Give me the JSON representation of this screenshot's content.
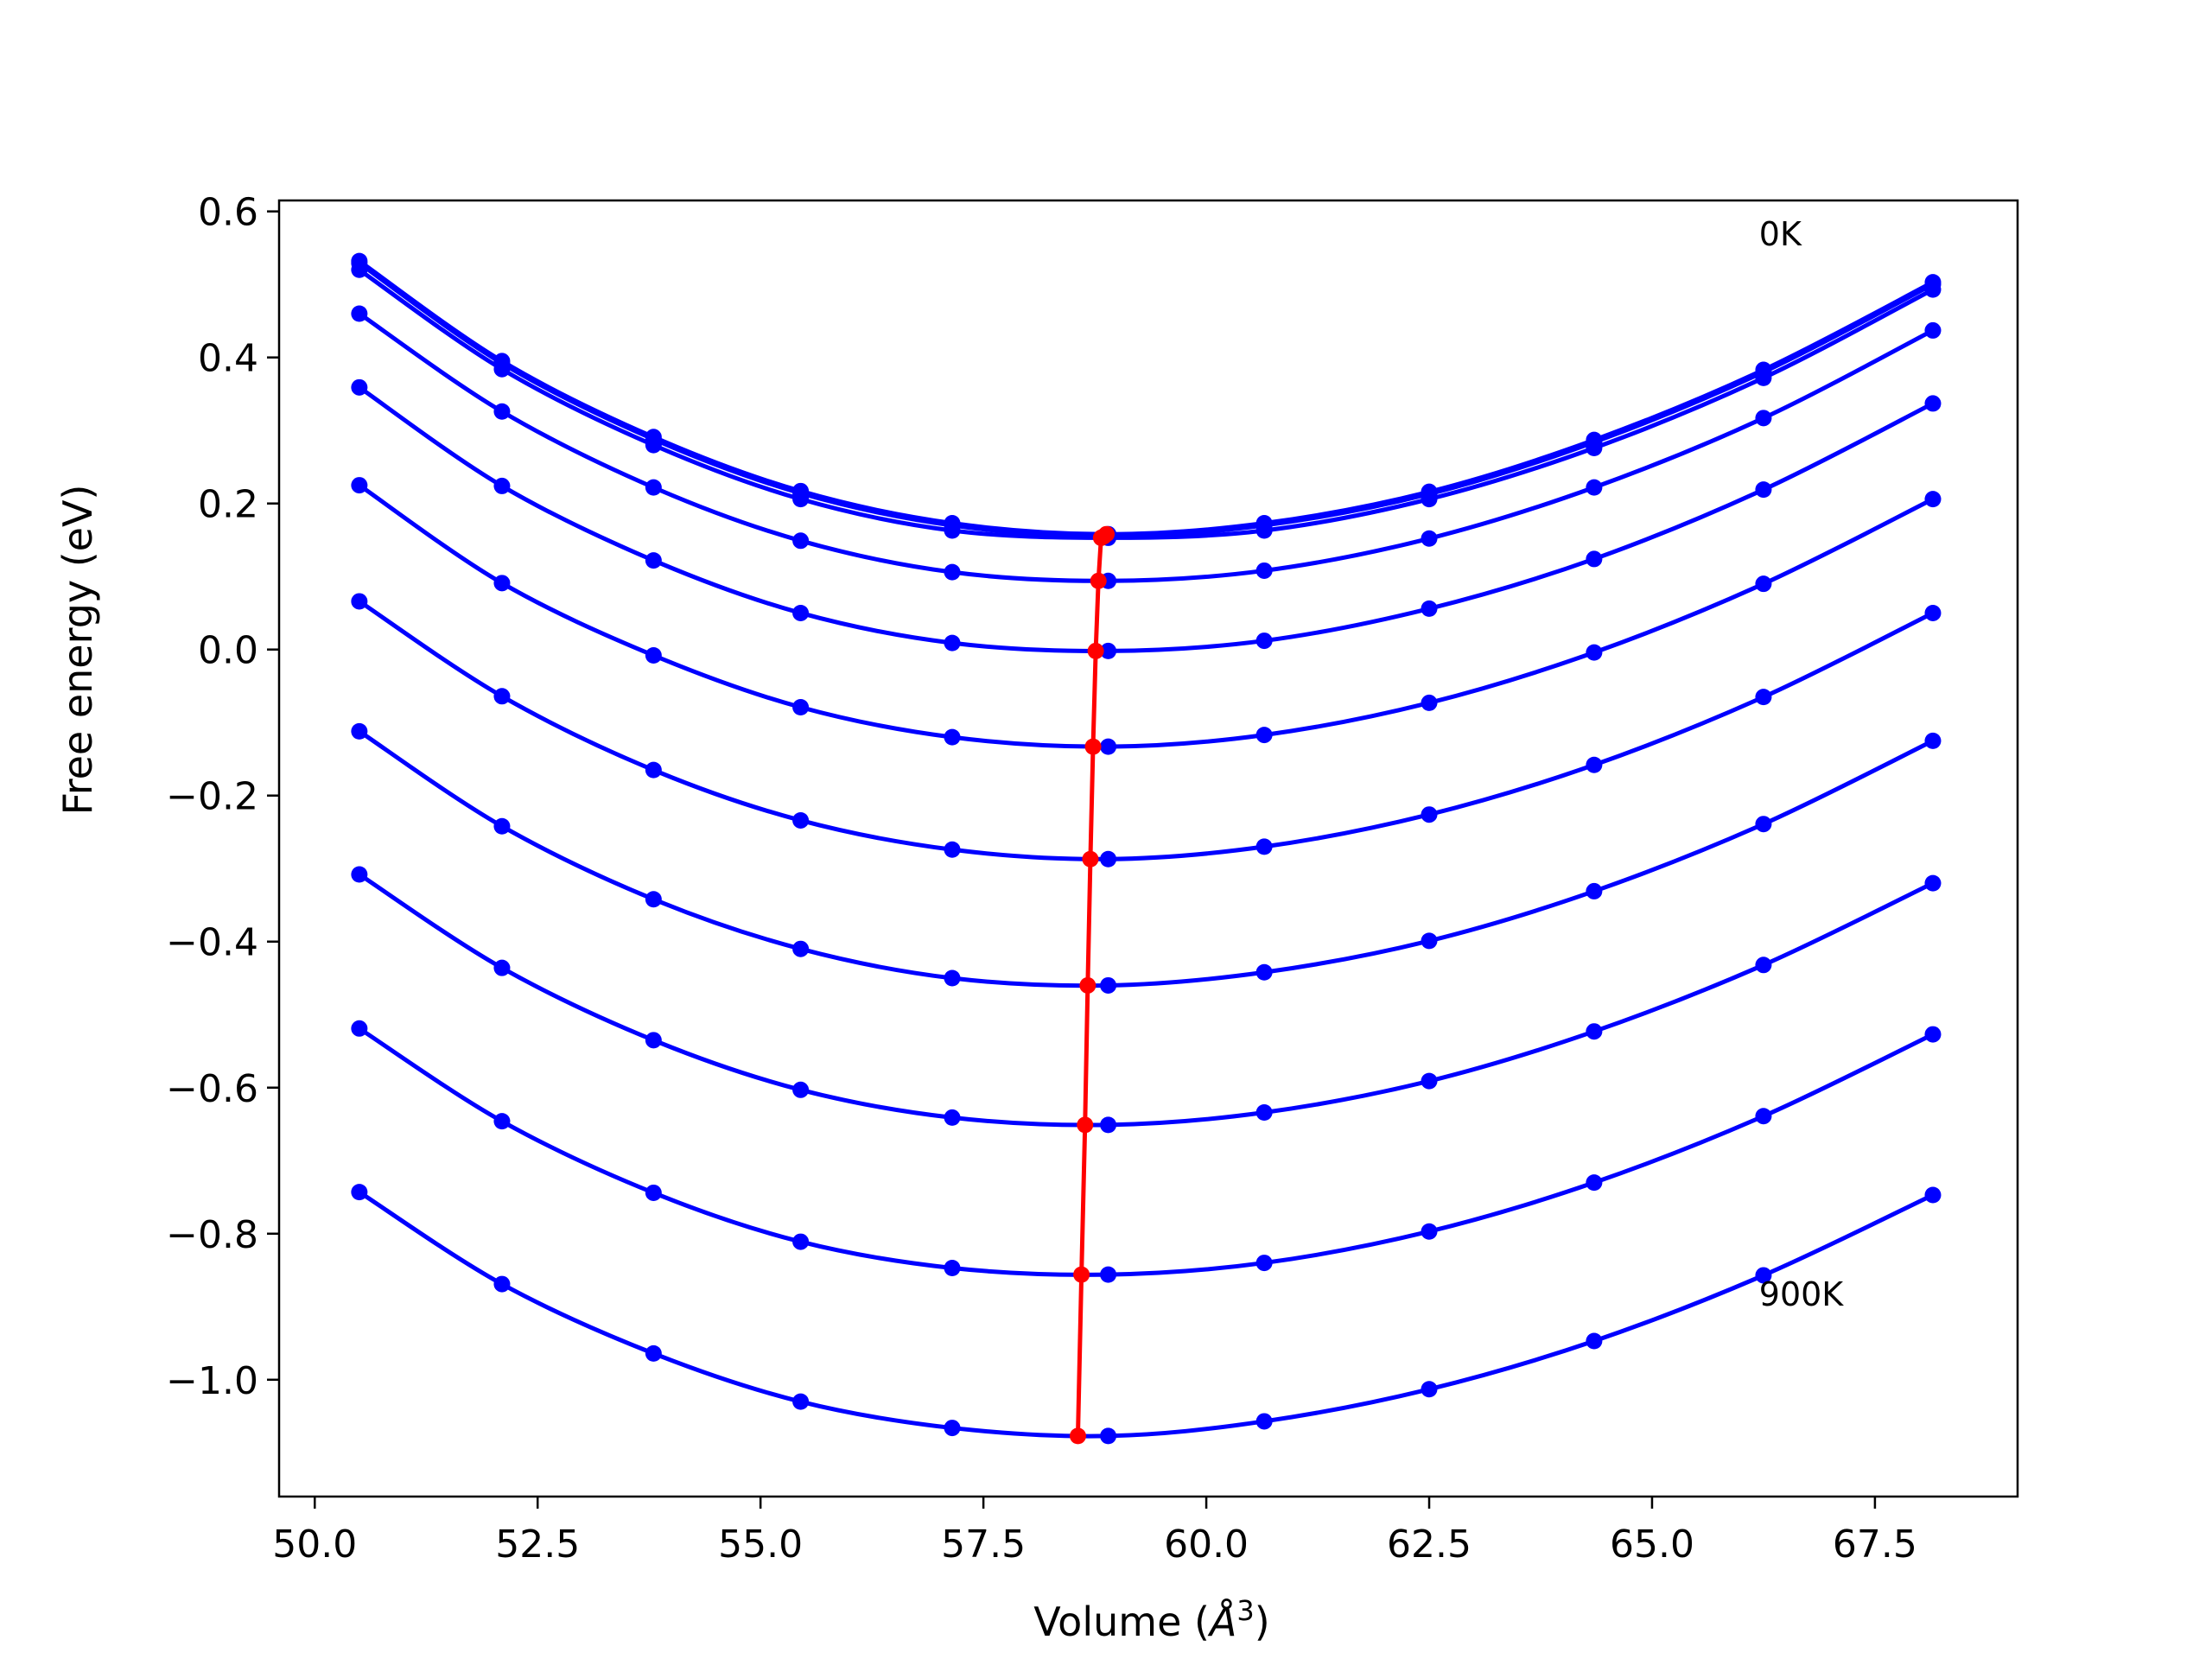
{
  "chart_data": {
    "type": "line",
    "xlabel": "Volume (Å³)",
    "xlabel_main": "Volume (",
    "xlabel_unit": "Å",
    "xlabel_exp": "3",
    "xlabel_close": ")",
    "ylabel": "Free energy (eV)",
    "xlim": [
      49.6,
      69.1
    ],
    "ylim": [
      -1.16,
      0.615
    ],
    "xticks": [
      50.0,
      52.5,
      55.0,
      57.5,
      60.0,
      62.5,
      65.0,
      67.5
    ],
    "xtick_labels": [
      "50.0",
      "52.5",
      "55.0",
      "57.5",
      "60.0",
      "62.5",
      "65.0",
      "67.5"
    ],
    "yticks": [
      0.6,
      0.4,
      0.2,
      0.0,
      -0.2,
      -0.4,
      -0.6,
      -0.8,
      -1.0
    ],
    "ytick_labels": [
      "0.6",
      "0.4",
      "0.2",
      "0.0",
      "−0.2",
      "−0.4",
      "−0.6",
      "−0.8",
      "−1.0"
    ],
    "grid": false,
    "legend": "none",
    "colors": {
      "curves": "#0000ff",
      "minima": "#ff0000"
    },
    "annotations": [
      {
        "text": "0K",
        "x": 66.2,
        "y": 0.57
      },
      {
        "text": "900K",
        "x": 66.2,
        "y": -0.882
      }
    ],
    "x": [
      50.5,
      52.1,
      53.8,
      55.45,
      57.15,
      58.9,
      60.65,
      62.5,
      64.35,
      66.25,
      68.15
    ],
    "series": [
      {
        "values": [
          0.532,
          0.395,
          0.291,
          0.217,
          0.173,
          0.158,
          0.173,
          0.216,
          0.287,
          0.383,
          0.503
        ]
      },
      {
        "values": [
          0.529,
          0.392,
          0.288,
          0.214,
          0.17,
          0.155,
          0.17,
          0.213,
          0.284,
          0.38,
          0.5
        ]
      },
      {
        "values": [
          0.52,
          0.384,
          0.28,
          0.206,
          0.163,
          0.153,
          0.163,
          0.206,
          0.276,
          0.372,
          0.493
        ]
      },
      {
        "values": [
          0.46,
          0.326,
          0.222,
          0.149,
          0.106,
          0.094,
          0.108,
          0.152,
          0.222,
          0.317,
          0.437
        ]
      },
      {
        "values": [
          0.359,
          0.224,
          0.122,
          0.05,
          0.009,
          -0.002,
          0.012,
          0.056,
          0.124,
          0.219,
          0.337
        ]
      },
      {
        "values": [
          0.225,
          0.091,
          -0.008,
          -0.079,
          -0.12,
          -0.133,
          -0.117,
          -0.073,
          -0.004,
          0.09,
          0.206
        ]
      },
      {
        "values": [
          0.066,
          -0.064,
          -0.165,
          -0.234,
          -0.274,
          -0.287,
          -0.27,
          -0.226,
          -0.158,
          -0.065,
          0.05
        ]
      },
      {
        "values": [
          -0.112,
          -0.242,
          -0.342,
          -0.41,
          -0.45,
          -0.46,
          -0.442,
          -0.399,
          -0.331,
          -0.239,
          -0.125
        ]
      },
      {
        "values": [
          -0.308,
          -0.436,
          -0.535,
          -0.603,
          -0.641,
          -0.651,
          -0.634,
          -0.591,
          -0.523,
          -0.432,
          -0.32
        ]
      },
      {
        "values": [
          -0.519,
          -0.646,
          -0.744,
          -0.811,
          -0.847,
          -0.856,
          -0.84,
          -0.797,
          -0.73,
          -0.639,
          -0.527
        ]
      },
      {
        "values": [
          -0.743,
          -0.869,
          -0.964,
          -1.03,
          -1.066,
          -1.077,
          -1.057,
          -1.013,
          -0.947,
          -0.857,
          -0.747
        ]
      }
    ],
    "minima": {
      "x": [
        58.88,
        58.85,
        58.82,
        58.79,
        58.76,
        58.73,
        58.7,
        58.67,
        58.64,
        58.6,
        58.56
      ],
      "y": [
        0.158,
        0.155,
        0.153,
        0.094,
        -0.002,
        -0.133,
        -0.287,
        -0.46,
        -0.651,
        -0.856,
        -1.077
      ]
    }
  }
}
